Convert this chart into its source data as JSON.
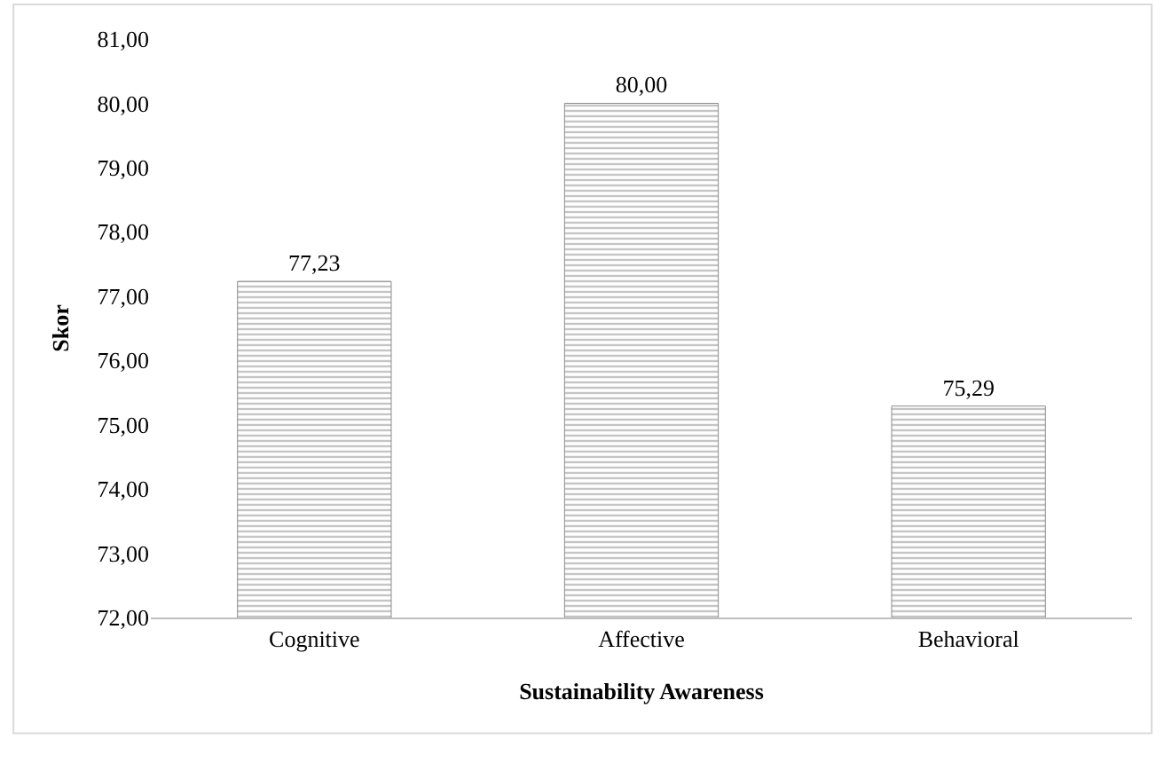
{
  "chart_data": {
    "type": "bar",
    "xlabel": "Sustainability Awareness",
    "ylabel": "Skor",
    "categories": [
      "Cognitive",
      "Affective",
      "Behavioral"
    ],
    "values": [
      77.23,
      80.0,
      75.29
    ],
    "value_labels": [
      "77,23",
      "80,00",
      "75,29"
    ],
    "color": "#8c8c8c",
    "ylim": [
      72,
      81
    ],
    "yticks": [
      {
        "value": 72,
        "label": "72,00"
      },
      {
        "value": 73,
        "label": "73,00"
      },
      {
        "value": 74,
        "label": "74,00"
      },
      {
        "value": 75,
        "label": "75,00"
      },
      {
        "value": 76,
        "label": "76,00"
      },
      {
        "value": 77,
        "label": "77,00"
      },
      {
        "value": 78,
        "label": "78,00"
      },
      {
        "value": 79,
        "label": "79,00"
      },
      {
        "value": 80,
        "label": "80,00"
      },
      {
        "value": 81,
        "label": "81,00"
      }
    ],
    "grid": false,
    "legend": false
  }
}
